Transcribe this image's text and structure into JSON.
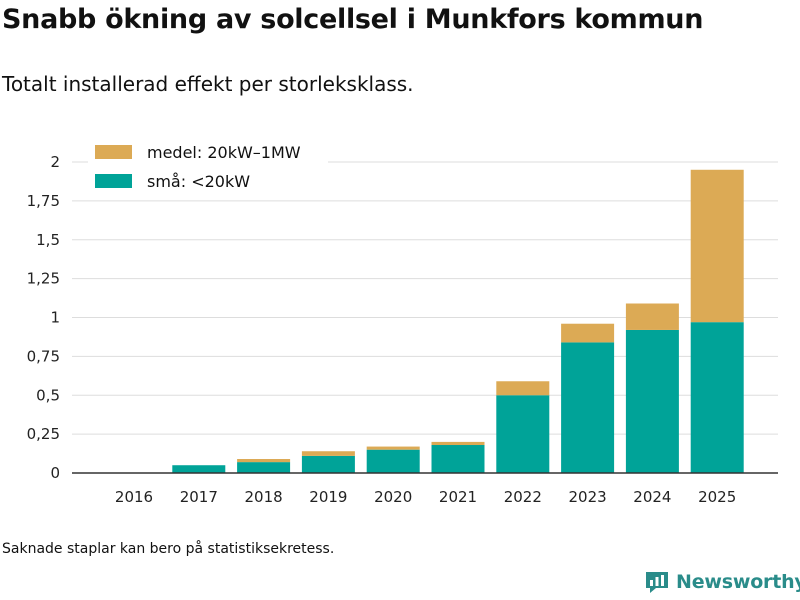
{
  "title": "Snabb ökning av solcellsel i Munkfors kommun",
  "subtitle": "Totalt installerad effekt per storleksklass.",
  "footnote": "Saknade staplar kan bero på statistiksekretess.",
  "brand": {
    "name": "Newsworthy",
    "icon": "newsworthy-logo-icon"
  },
  "colors": {
    "small": "#00a398",
    "medium": "#dcaa55",
    "grid": "#dddddd",
    "axis": "#333333"
  },
  "chart_data": {
    "type": "bar",
    "stacked": true,
    "title": "Snabb ökning av solcellsel i Munkfors kommun",
    "subtitle": "Totalt installerad effekt per storleksklass.",
    "xlabel": "",
    "ylabel": "",
    "ylim": [
      0,
      2
    ],
    "yticks": [
      {
        "value": 0,
        "label": "0"
      },
      {
        "value": 0.25,
        "label": "0,25"
      },
      {
        "value": 0.5,
        "label": "0,5"
      },
      {
        "value": 0.75,
        "label": "0,75"
      },
      {
        "value": 1,
        "label": "1"
      },
      {
        "value": 1.25,
        "label": "1,25"
      },
      {
        "value": 1.5,
        "label": "1,5"
      },
      {
        "value": 1.75,
        "label": "1,75"
      },
      {
        "value": 2,
        "label": "2"
      }
    ],
    "grid": true,
    "legend_position": "top-left",
    "categories": [
      "2016",
      "2017",
      "2018",
      "2019",
      "2020",
      "2021",
      "2022",
      "2023",
      "2024",
      "2025"
    ],
    "series": [
      {
        "name": "små: <20kW",
        "color": "#00a398",
        "values": [
          0,
          0.05,
          0.07,
          0.11,
          0.15,
          0.18,
          0.5,
          0.84,
          0.92,
          0.97
        ]
      },
      {
        "name": "medel: 20kW–1MW",
        "color": "#dcaa55",
        "values": [
          0,
          0,
          0.02,
          0.03,
          0.02,
          0.02,
          0.09,
          0.12,
          0.17,
          0.98
        ]
      }
    ],
    "legend_order": [
      "medel: 20kW–1MW",
      "små: <20kW"
    ]
  }
}
